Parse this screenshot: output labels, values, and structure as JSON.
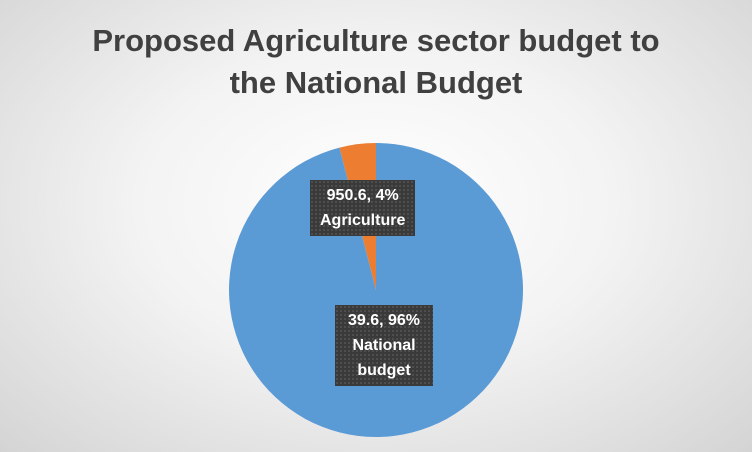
{
  "chart_data": {
    "type": "pie",
    "title": "Proposed Agriculture sector budget to the National Budget",
    "categories": [
      "Agriculture",
      "National budget"
    ],
    "values": [
      4,
      96
    ],
    "value_labels": [
      "950.6, 4%",
      "39.6, 96%"
    ],
    "colors": [
      "#ed7d31",
      "#5b9bd5"
    ]
  }
}
